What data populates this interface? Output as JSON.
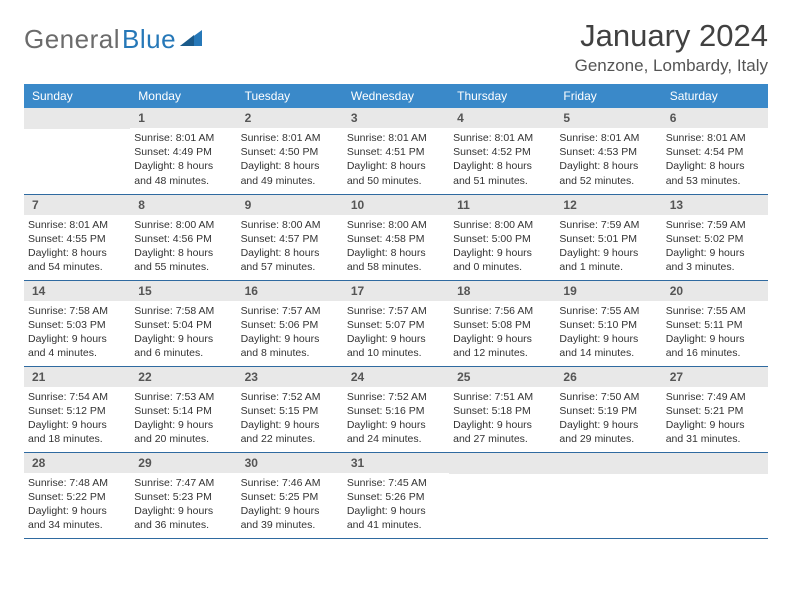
{
  "logo": {
    "text1": "General",
    "text2": "Blue"
  },
  "title": "January 2024",
  "location": "Genzone, Lombardy, Italy",
  "colors": {
    "header_bg": "#3a89c9",
    "header_text": "#ffffff",
    "daynum_bg": "#e8e8e8",
    "row_border": "#2f6aa0",
    "logo_gray": "#6b6b6b",
    "logo_blue": "#2678b8"
  },
  "weekdays": [
    "Sunday",
    "Monday",
    "Tuesday",
    "Wednesday",
    "Thursday",
    "Friday",
    "Saturday"
  ],
  "weeks": [
    [
      null,
      {
        "n": "1",
        "sr": "8:01 AM",
        "ss": "4:49 PM",
        "dl": "8 hours and 48 minutes."
      },
      {
        "n": "2",
        "sr": "8:01 AM",
        "ss": "4:50 PM",
        "dl": "8 hours and 49 minutes."
      },
      {
        "n": "3",
        "sr": "8:01 AM",
        "ss": "4:51 PM",
        "dl": "8 hours and 50 minutes."
      },
      {
        "n": "4",
        "sr": "8:01 AM",
        "ss": "4:52 PM",
        "dl": "8 hours and 51 minutes."
      },
      {
        "n": "5",
        "sr": "8:01 AM",
        "ss": "4:53 PM",
        "dl": "8 hours and 52 minutes."
      },
      {
        "n": "6",
        "sr": "8:01 AM",
        "ss": "4:54 PM",
        "dl": "8 hours and 53 minutes."
      }
    ],
    [
      {
        "n": "7",
        "sr": "8:01 AM",
        "ss": "4:55 PM",
        "dl": "8 hours and 54 minutes."
      },
      {
        "n": "8",
        "sr": "8:00 AM",
        "ss": "4:56 PM",
        "dl": "8 hours and 55 minutes."
      },
      {
        "n": "9",
        "sr": "8:00 AM",
        "ss": "4:57 PM",
        "dl": "8 hours and 57 minutes."
      },
      {
        "n": "10",
        "sr": "8:00 AM",
        "ss": "4:58 PM",
        "dl": "8 hours and 58 minutes."
      },
      {
        "n": "11",
        "sr": "8:00 AM",
        "ss": "5:00 PM",
        "dl": "9 hours and 0 minutes."
      },
      {
        "n": "12",
        "sr": "7:59 AM",
        "ss": "5:01 PM",
        "dl": "9 hours and 1 minute."
      },
      {
        "n": "13",
        "sr": "7:59 AM",
        "ss": "5:02 PM",
        "dl": "9 hours and 3 minutes."
      }
    ],
    [
      {
        "n": "14",
        "sr": "7:58 AM",
        "ss": "5:03 PM",
        "dl": "9 hours and 4 minutes."
      },
      {
        "n": "15",
        "sr": "7:58 AM",
        "ss": "5:04 PM",
        "dl": "9 hours and 6 minutes."
      },
      {
        "n": "16",
        "sr": "7:57 AM",
        "ss": "5:06 PM",
        "dl": "9 hours and 8 minutes."
      },
      {
        "n": "17",
        "sr": "7:57 AM",
        "ss": "5:07 PM",
        "dl": "9 hours and 10 minutes."
      },
      {
        "n": "18",
        "sr": "7:56 AM",
        "ss": "5:08 PM",
        "dl": "9 hours and 12 minutes."
      },
      {
        "n": "19",
        "sr": "7:55 AM",
        "ss": "5:10 PM",
        "dl": "9 hours and 14 minutes."
      },
      {
        "n": "20",
        "sr": "7:55 AM",
        "ss": "5:11 PM",
        "dl": "9 hours and 16 minutes."
      }
    ],
    [
      {
        "n": "21",
        "sr": "7:54 AM",
        "ss": "5:12 PM",
        "dl": "9 hours and 18 minutes."
      },
      {
        "n": "22",
        "sr": "7:53 AM",
        "ss": "5:14 PM",
        "dl": "9 hours and 20 minutes."
      },
      {
        "n": "23",
        "sr": "7:52 AM",
        "ss": "5:15 PM",
        "dl": "9 hours and 22 minutes."
      },
      {
        "n": "24",
        "sr": "7:52 AM",
        "ss": "5:16 PM",
        "dl": "9 hours and 24 minutes."
      },
      {
        "n": "25",
        "sr": "7:51 AM",
        "ss": "5:18 PM",
        "dl": "9 hours and 27 minutes."
      },
      {
        "n": "26",
        "sr": "7:50 AM",
        "ss": "5:19 PM",
        "dl": "9 hours and 29 minutes."
      },
      {
        "n": "27",
        "sr": "7:49 AM",
        "ss": "5:21 PM",
        "dl": "9 hours and 31 minutes."
      }
    ],
    [
      {
        "n": "28",
        "sr": "7:48 AM",
        "ss": "5:22 PM",
        "dl": "9 hours and 34 minutes."
      },
      {
        "n": "29",
        "sr": "7:47 AM",
        "ss": "5:23 PM",
        "dl": "9 hours and 36 minutes."
      },
      {
        "n": "30",
        "sr": "7:46 AM",
        "ss": "5:25 PM",
        "dl": "9 hours and 39 minutes."
      },
      {
        "n": "31",
        "sr": "7:45 AM",
        "ss": "5:26 PM",
        "dl": "9 hours and 41 minutes."
      },
      null,
      null,
      null
    ]
  ],
  "labels": {
    "sunrise": "Sunrise:",
    "sunset": "Sunset:",
    "daylight": "Daylight:"
  }
}
